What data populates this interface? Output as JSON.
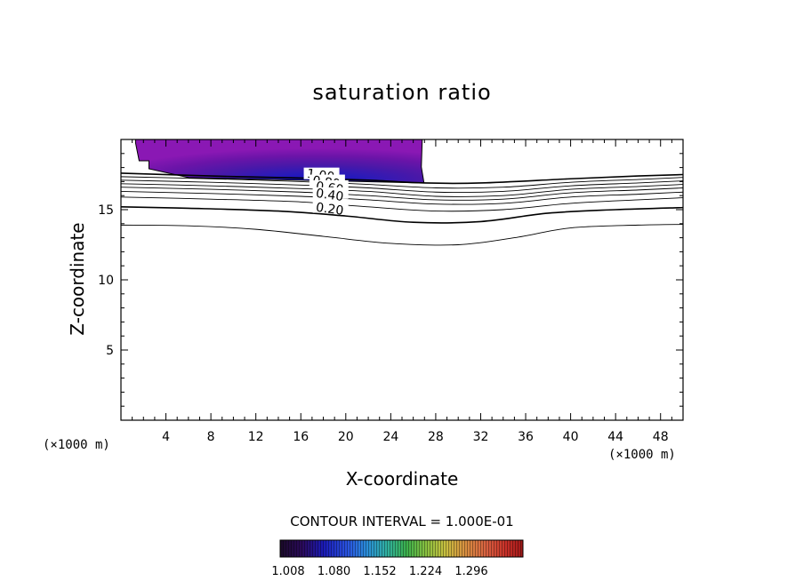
{
  "chart_data": {
    "type": "contour",
    "title": "saturation ratio",
    "xlabel": "X-coordinate",
    "ylabel": "Z-coordinate",
    "x_unit": "(×1000 m)",
    "y_unit": "(×1000 m)",
    "xlim": [
      0,
      50
    ],
    "ylim": [
      0,
      20
    ],
    "x_ticks": [
      4,
      8,
      12,
      16,
      20,
      24,
      28,
      32,
      36,
      40,
      44,
      48
    ],
    "y_ticks": [
      5,
      10,
      15
    ],
    "contour_interval_text": "CONTOUR INTERVAL = 1.000E-01",
    "contour_labels": [
      {
        "text": "1.00",
        "x": 16.5,
        "y": 17.3
      },
      {
        "text": "0.80",
        "x": 17.0,
        "y": 16.8
      },
      {
        "text": "0.60",
        "x": 17.3,
        "y": 16.4
      },
      {
        "text": "0.40",
        "x": 17.3,
        "y": 15.9
      },
      {
        "text": "0.20",
        "x": 17.3,
        "y": 14.9
      }
    ],
    "contour_lines": [
      {
        "level": 1.0,
        "bold": true,
        "points": [
          [
            0,
            17.6
          ],
          [
            8,
            17.4
          ],
          [
            16,
            17.25
          ],
          [
            22,
            17.1
          ],
          [
            27,
            16.9
          ],
          [
            32,
            16.9
          ],
          [
            40,
            17.2
          ],
          [
            46,
            17.4
          ],
          [
            50,
            17.5
          ]
        ]
      },
      {
        "level": 0.9,
        "bold": false,
        "points": [
          [
            0,
            17.35
          ],
          [
            8,
            17.2
          ],
          [
            16,
            17.0
          ],
          [
            22,
            16.8
          ],
          [
            28,
            16.55
          ],
          [
            34,
            16.6
          ],
          [
            40,
            16.95
          ],
          [
            46,
            17.15
          ],
          [
            50,
            17.3
          ]
        ]
      },
      {
        "level": 0.8,
        "bold": false,
        "points": [
          [
            0,
            17.1
          ],
          [
            8,
            16.95
          ],
          [
            16,
            16.75
          ],
          [
            22,
            16.55
          ],
          [
            28,
            16.25
          ],
          [
            34,
            16.3
          ],
          [
            40,
            16.7
          ],
          [
            46,
            16.9
          ],
          [
            50,
            17.05
          ]
        ]
      },
      {
        "level": 0.7,
        "bold": false,
        "points": [
          [
            0,
            16.85
          ],
          [
            8,
            16.7
          ],
          [
            16,
            16.5
          ],
          [
            22,
            16.3
          ],
          [
            28,
            15.95
          ],
          [
            34,
            16.0
          ],
          [
            40,
            16.45
          ],
          [
            46,
            16.65
          ],
          [
            50,
            16.8
          ]
        ]
      },
      {
        "level": 0.6,
        "bold": false,
        "points": [
          [
            0,
            16.6
          ],
          [
            8,
            16.45
          ],
          [
            16,
            16.25
          ],
          [
            22,
            16.0
          ],
          [
            28,
            15.7
          ],
          [
            34,
            15.75
          ],
          [
            40,
            16.2
          ],
          [
            46,
            16.4
          ],
          [
            50,
            16.55
          ]
        ]
      },
      {
        "level": 0.5,
        "bold": false,
        "points": [
          [
            0,
            16.3
          ],
          [
            8,
            16.15
          ],
          [
            16,
            15.95
          ],
          [
            22,
            15.7
          ],
          [
            28,
            15.4
          ],
          [
            34,
            15.45
          ],
          [
            40,
            15.9
          ],
          [
            46,
            16.1
          ],
          [
            50,
            16.25
          ]
        ]
      },
      {
        "level": 0.4,
        "bold": false,
        "points": [
          [
            0,
            15.9
          ],
          [
            8,
            15.75
          ],
          [
            16,
            15.55
          ],
          [
            22,
            15.2
          ],
          [
            28,
            14.9
          ],
          [
            34,
            15.0
          ],
          [
            40,
            15.45
          ],
          [
            46,
            15.7
          ],
          [
            50,
            15.85
          ]
        ]
      },
      {
        "level": 0.3,
        "bold": true,
        "points": [
          [
            0,
            15.2
          ],
          [
            6,
            15.1
          ],
          [
            14,
            14.9
          ],
          [
            20,
            14.55
          ],
          [
            26,
            14.1
          ],
          [
            32,
            14.15
          ],
          [
            38,
            14.75
          ],
          [
            44,
            15.0
          ],
          [
            50,
            15.15
          ]
        ]
      },
      {
        "level": 0.2,
        "bold": false,
        "points": [
          [
            0,
            13.9
          ],
          [
            6,
            13.85
          ],
          [
            12,
            13.6
          ],
          [
            18,
            13.1
          ],
          [
            24,
            12.6
          ],
          [
            30,
            12.5
          ],
          [
            35,
            13.0
          ],
          [
            40,
            13.7
          ],
          [
            46,
            13.9
          ],
          [
            50,
            13.95
          ]
        ]
      }
    ],
    "filled_region": {
      "xlim": [
        1.3,
        26.8
      ],
      "ylim": [
        16.9,
        20
      ],
      "colorbar": {
        "ticks": [
          "1.008",
          "1.080",
          "1.152",
          "1.224",
          "1.296"
        ],
        "colors": [
          "#1a0a28",
          "#2a0a5a",
          "#1b1bb8",
          "#2a55e0",
          "#2a8fd8",
          "#30b0a0",
          "#3bb04c",
          "#88c040",
          "#c8c040",
          "#d89040",
          "#d86040",
          "#c83028",
          "#a01818"
        ]
      }
    }
  }
}
